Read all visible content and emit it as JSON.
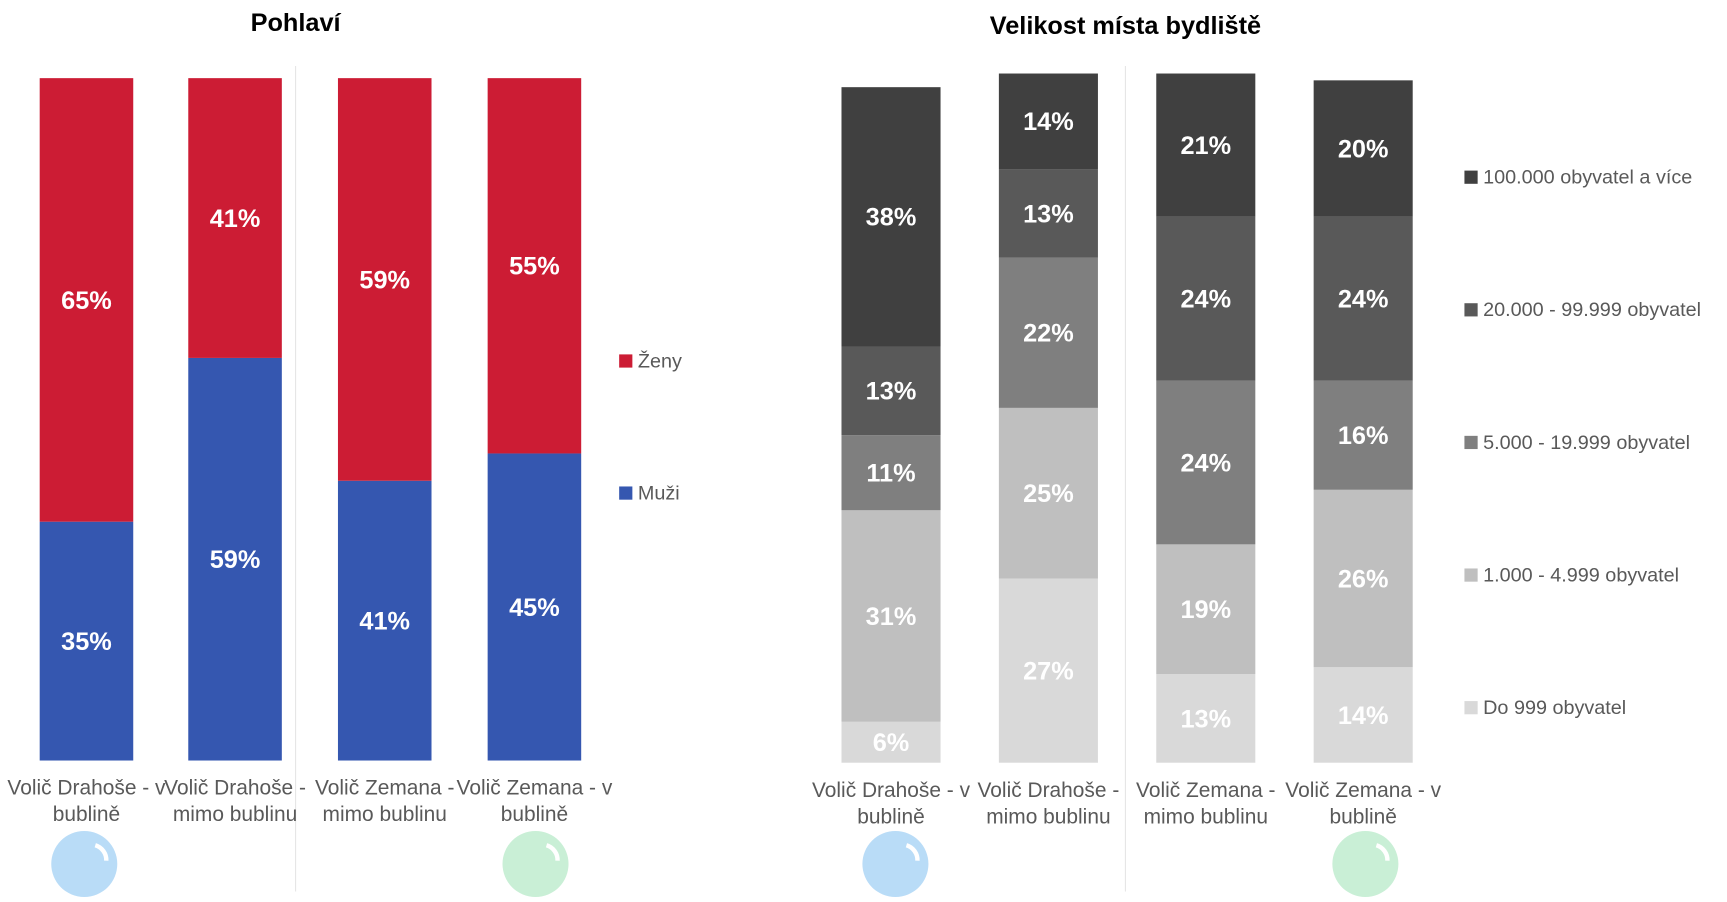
{
  "chart_data": [
    {
      "type": "stacked_bar",
      "title": "Pohlaví",
      "categories": [
        "Volič Drahoše - v bublině",
        "Volič Drahoše - mimo bublinu",
        "Volič Zemana - mimo bublinu",
        "Volič Zemana -  v bublině"
      ],
      "ylim": [
        0,
        100
      ],
      "series": [
        {
          "name": "Muži",
          "color": "#3557b0",
          "values": [
            35,
            59,
            41,
            45
          ],
          "value_labels": [
            "35%",
            "59%",
            "41%",
            "45%"
          ]
        },
        {
          "name": "Ženy",
          "color": "#cc1c34",
          "values": [
            65,
            41,
            59,
            55
          ],
          "value_labels": [
            "65%",
            "41%",
            "59%",
            "55%"
          ]
        }
      ]
    },
    {
      "type": "stacked_bar",
      "title": "Velikost místa bydliště",
      "categories": [
        "Volič Drahoše - v bublině",
        "Volič Drahoše - mimo bublinu",
        "Volič Zemana - mimo bublinu",
        "Volič Zemana -  v bublině"
      ],
      "ylim": [
        0,
        100
      ],
      "series": [
        {
          "name": "Do 999 obyvatel",
          "color": "#d9d9d9",
          "values": [
            6,
            27,
            13,
            14
          ],
          "value_labels": [
            "6%",
            "27%",
            "13%",
            "14%"
          ]
        },
        {
          "name": "1.000 - 4.999 obyvatel",
          "color": "#bfbfbf",
          "values": [
            31,
            25,
            19,
            26
          ],
          "value_labels": [
            "31%",
            "25%",
            "19%",
            "26%"
          ]
        },
        {
          "name": "5.000 - 19.999 obyvatel",
          "color": "#7f7f7f",
          "values": [
            11,
            22,
            24,
            16
          ],
          "value_labels": [
            "11%",
            "22%",
            "24%",
            "16%"
          ]
        },
        {
          "name": "20.000 - 99.999 obyvatel",
          "color": "#595959",
          "values": [
            13,
            13,
            24,
            24
          ],
          "value_labels": [
            "13%",
            "13%",
            "24%",
            "24%"
          ]
        },
        {
          "name": "100.000 obyvatel a více",
          "color": "#404040",
          "values": [
            38,
            14,
            21,
            20
          ],
          "value_labels": [
            "38%",
            "14%",
            "21%",
            "20%"
          ]
        }
      ]
    }
  ]
}
